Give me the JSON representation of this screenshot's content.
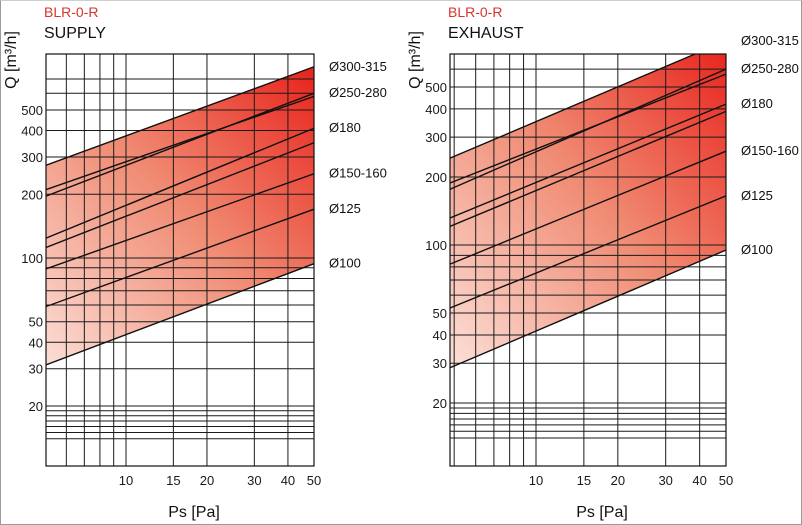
{
  "chart_data": [
    {
      "type": "line",
      "code": "BLR-0-R",
      "title": "SUPPLY",
      "xlabel": "Ps [Pa]",
      "ylabel": "Q [m³/h]",
      "x_scale": "log",
      "y_scale": "log",
      "xlim": [
        4,
        50
      ],
      "ylim": [
        13,
        800
      ],
      "x_ticks": [
        "10",
        "15",
        "20",
        "30",
        "40",
        "50"
      ],
      "y_ticks": [
        "20",
        "30",
        "40",
        "50",
        "100",
        "200",
        "300",
        "400",
        "500"
      ],
      "band_color_low": "#fde8e2",
      "band_color_high": "#e8231c",
      "series": [
        {
          "name": "Ø300-315",
          "points": [
            [
              4,
              246
            ],
            [
              50,
              800
            ]
          ]
        },
        {
          "name": "Ø250-280",
          "points": [
            [
              4,
              175
            ],
            [
              50,
              600
            ]
          ]
        },
        {
          "name": "",
          "points": [
            [
              4,
              190
            ],
            [
              50,
              580
            ]
          ]
        },
        {
          "name": "Ø180",
          "points": [
            [
              4,
              110
            ],
            [
              50,
              410
            ]
          ]
        },
        {
          "name": "",
          "points": [
            [
              4,
              100
            ],
            [
              50,
              350
            ]
          ]
        },
        {
          "name": "Ø150-160",
          "points": [
            [
              4,
              80
            ],
            [
              50,
              250
            ]
          ]
        },
        {
          "name": "Ø125",
          "points": [
            [
              4,
              53
            ],
            [
              50,
              170
            ]
          ]
        },
        {
          "name": "Ø100",
          "points": [
            [
              4,
              28
            ],
            [
              50,
              94
            ]
          ]
        }
      ]
    },
    {
      "type": "line",
      "code": "BLR-0-R",
      "title": "EXHAUST",
      "xlabel": "Ps [Pa]",
      "ylabel": "Q [m³/h]",
      "x_scale": "log",
      "y_scale": "log",
      "xlim": [
        4,
        50
      ],
      "ylim": [
        13,
        800
      ],
      "x_ticks": [
        "10",
        "15",
        "20",
        "30",
        "40",
        "50"
      ],
      "y_ticks": [
        "20",
        "30",
        "40",
        "50",
        "100",
        "200",
        "300",
        "400",
        "500"
      ],
      "band_color_low": "#fde8e2",
      "band_color_high": "#e8231c",
      "series": [
        {
          "name": "Ø300-315",
          "points": [
            [
              4,
              220
            ],
            [
              50,
              800
            ]
          ]
        },
        {
          "name": "Ø250-280",
          "points": [
            [
              4,
              160
            ],
            [
              50,
              600
            ]
          ]
        },
        {
          "name": "",
          "points": [
            [
              4,
              172
            ],
            [
              50,
              570
            ]
          ]
        },
        {
          "name": "Ø180",
          "points": [
            [
              4,
              120
            ],
            [
              50,
              420
            ]
          ]
        },
        {
          "name": "",
          "points": [
            [
              4,
              110
            ],
            [
              50,
              390
            ]
          ]
        },
        {
          "name": "Ø150-160",
          "points": [
            [
              4,
              75
            ],
            [
              50,
              260
            ]
          ]
        },
        {
          "name": "Ø125",
          "points": [
            [
              4,
              48
            ],
            [
              50,
              165
            ]
          ]
        },
        {
          "name": "Ø100",
          "points": [
            [
              4,
              26
            ],
            [
              50,
              95
            ]
          ]
        }
      ]
    }
  ]
}
